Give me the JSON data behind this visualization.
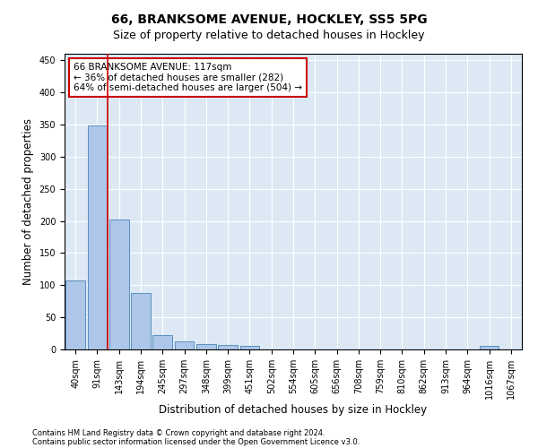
{
  "title1": "66, BRANKSOME AVENUE, HOCKLEY, SS5 5PG",
  "title2": "Size of property relative to detached houses in Hockley",
  "xlabel": "Distribution of detached houses by size in Hockley",
  "ylabel": "Number of detached properties",
  "categories": [
    "40sqm",
    "91sqm",
    "143sqm",
    "194sqm",
    "245sqm",
    "297sqm",
    "348sqm",
    "399sqm",
    "451sqm",
    "502sqm",
    "554sqm",
    "605sqm",
    "656sqm",
    "708sqm",
    "759sqm",
    "810sqm",
    "862sqm",
    "913sqm",
    "964sqm",
    "1016sqm",
    "1067sqm"
  ],
  "values": [
    107,
    349,
    202,
    88,
    22,
    13,
    9,
    7,
    5,
    0,
    0,
    0,
    0,
    0,
    0,
    0,
    0,
    0,
    0,
    5,
    0
  ],
  "bar_color": "#aec6e8",
  "bar_edge_color": "#5a8fc0",
  "ylim": [
    0,
    460
  ],
  "yticks": [
    0,
    50,
    100,
    150,
    200,
    250,
    300,
    350,
    400,
    450
  ],
  "vline_x": 1.47,
  "vline_color": "#cc0000",
  "annotation_text": "66 BRANKSOME AVENUE: 117sqm\n← 36% of detached houses are smaller (282)\n64% of semi-detached houses are larger (504) →",
  "annotation_box_edgecolor": "#cc0000",
  "annotation_fontsize": 7.5,
  "background_color": "#dce9f5",
  "footer1": "Contains HM Land Registry data © Crown copyright and database right 2024.",
  "footer2": "Contains public sector information licensed under the Open Government Licence v3.0.",
  "title_fontsize": 10,
  "subtitle_fontsize": 9,
  "xlabel_fontsize": 8.5,
  "ylabel_fontsize": 8.5,
  "tick_fontsize": 7
}
